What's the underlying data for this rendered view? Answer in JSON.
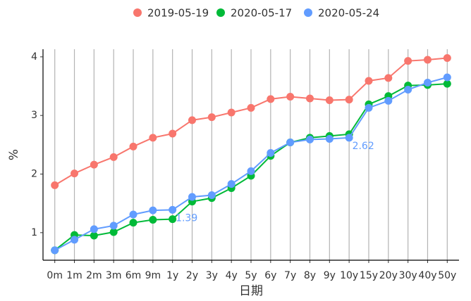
{
  "chart_data": {
    "type": "line",
    "xlabel": "日期",
    "ylabel": "%",
    "categories": [
      "0m",
      "1m",
      "2m",
      "3m",
      "6m",
      "9m",
      "1y",
      "2y",
      "3y",
      "4y",
      "5y",
      "6y",
      "7y",
      "8y",
      "9y",
      "10y",
      "15y",
      "20y",
      "30y",
      "40y",
      "50y"
    ],
    "series": [
      {
        "name": "2019-05-19",
        "color": "#F8766D",
        "values": [
          1.81,
          2.01,
          2.16,
          2.29,
          2.47,
          2.62,
          2.69,
          2.92,
          2.97,
          3.05,
          3.13,
          3.28,
          3.32,
          3.29,
          3.26,
          3.27,
          3.59,
          3.64,
          3.93,
          3.95,
          3.98
        ]
      },
      {
        "name": "2020-05-17",
        "color": "#00BA38",
        "values": [
          0.7,
          0.96,
          0.95,
          1.01,
          1.17,
          1.22,
          1.23,
          1.53,
          1.59,
          1.76,
          1.97,
          2.31,
          2.54,
          2.62,
          2.65,
          2.68,
          3.19,
          3.33,
          3.51,
          3.52,
          3.54
        ]
      },
      {
        "name": "2020-05-24",
        "color": "#619CFF",
        "values": [
          0.7,
          0.88,
          1.06,
          1.12,
          1.31,
          1.38,
          1.39,
          1.61,
          1.64,
          1.83,
          2.05,
          2.36,
          2.54,
          2.59,
          2.6,
          2.62,
          3.13,
          3.25,
          3.44,
          3.56,
          3.65
        ],
        "value_labels": [
          null,
          null,
          null,
          null,
          null,
          null,
          "1.39",
          null,
          null,
          null,
          null,
          null,
          null,
          null,
          null,
          "2.62",
          null,
          null,
          null,
          null,
          null
        ]
      }
    ],
    "ylim": [
      0.53,
      4.13
    ],
    "yticks": [
      1,
      2,
      3,
      4
    ],
    "grid": "x",
    "legend": "top"
  }
}
